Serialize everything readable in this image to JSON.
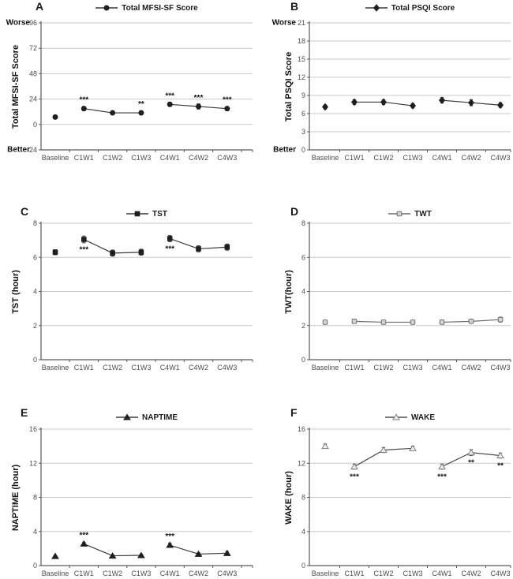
{
  "figure": {
    "background": "#ffffff",
    "style": {
      "grid_color": "#c9c9c9",
      "axis_color": "#595959",
      "tick_text_color": "#4d4d4d",
      "sig_color": "#111111"
    }
  },
  "chart_data": [
    {
      "type": "line",
      "letter": "A",
      "legend_label": "Total MFSI-SF Score",
      "y_axis_title": "Total MFSI-SF Score",
      "direction_labels": {
        "top": "Worse",
        "bottom": "Better"
      },
      "marker": "circle-filled",
      "marker_fill": "#1f1f1f",
      "marker_stroke": "#1f1f1f",
      "line_color": "#3a3a3a",
      "ylim": [
        -24,
        96
      ],
      "yticks": [
        96,
        72,
        48,
        24,
        0,
        -24
      ],
      "categories": [
        "Baseline",
        "C1W1",
        "C1W2",
        "C1W3",
        "C4W1",
        "C4W2",
        "C4W3"
      ],
      "values": [
        7,
        15,
        11,
        11,
        19,
        17,
        15
      ],
      "errors": [
        1.5,
        2,
        1.8,
        1.8,
        2,
        2.5,
        2
      ],
      "significance": [
        "",
        "***",
        "",
        "**",
        "***",
        "***",
        "***"
      ],
      "significance_position": "above",
      "connected_segments": [
        [
          1,
          2,
          3
        ],
        [
          4,
          5,
          6
        ]
      ]
    },
    {
      "type": "line",
      "letter": "B",
      "legend_label": "Total PSQI Score",
      "y_axis_title": "Total PSQI Score",
      "direction_labels": {
        "top": "Worse",
        "bottom": "Better"
      },
      "marker": "diamond-filled",
      "marker_fill": "#1f1f1f",
      "marker_stroke": "#1f1f1f",
      "line_color": "#3a3a3a",
      "ylim": [
        0,
        21
      ],
      "yticks": [
        21,
        18,
        15,
        12,
        9,
        6,
        3,
        0
      ],
      "categories": [
        "Baseline",
        "C1W1",
        "C1W2",
        "C1W3",
        "C4W1",
        "C4W2",
        "C4W3"
      ],
      "values": [
        7.1,
        7.9,
        7.9,
        7.3,
        8.2,
        7.8,
        7.4
      ],
      "errors": [
        0.35,
        0.4,
        0.4,
        0.35,
        0.45,
        0.5,
        0.4
      ],
      "significance": [
        "",
        "",
        "",
        "",
        "",
        "",
        ""
      ],
      "significance_position": "above",
      "connected_segments": [
        [
          1,
          2,
          3
        ],
        [
          4,
          5,
          6
        ]
      ]
    },
    {
      "type": "line",
      "letter": "C",
      "legend_label": "TST",
      "y_axis_title": "TST (hour)",
      "marker": "square-filled",
      "marker_fill": "#1f1f1f",
      "marker_stroke": "#1f1f1f",
      "line_color": "#3a3a3a",
      "ylim": [
        0,
        8
      ],
      "yticks": [
        8,
        6,
        4,
        2,
        0
      ],
      "categories": [
        "Baseline",
        "C1W1",
        "C1W2",
        "C1W3",
        "C4W1",
        "C4W2",
        "C4W3"
      ],
      "values": [
        6.3,
        7.05,
        6.25,
        6.3,
        7.1,
        6.5,
        6.6
      ],
      "errors": [
        0.15,
        0.2,
        0.18,
        0.18,
        0.18,
        0.18,
        0.18
      ],
      "significance": [
        "",
        "***",
        "",
        "",
        "***",
        "",
        ""
      ],
      "significance_position": "below",
      "connected_segments": [
        [
          1,
          2,
          3
        ],
        [
          4,
          5,
          6
        ]
      ]
    },
    {
      "type": "line",
      "letter": "D",
      "legend_label": "TWT",
      "y_axis_title": "TWT(hour)",
      "marker": "square-open",
      "marker_fill": "#d4d4d4",
      "marker_stroke": "#707070",
      "line_color": "#6b6b6b",
      "ylim": [
        0,
        8
      ],
      "yticks": [
        8,
        6,
        4,
        2,
        0
      ],
      "categories": [
        "Baseline",
        "C1W1",
        "C1W2",
        "C1W3",
        "C4W1",
        "C4W2",
        "C4W3"
      ],
      "values": [
        2.2,
        2.25,
        2.2,
        2.2,
        2.2,
        2.25,
        2.35
      ],
      "errors": [
        0.1,
        0.1,
        0.1,
        0.1,
        0.12,
        0.1,
        0.15
      ],
      "significance": [
        "",
        "",
        "",
        "",
        "",
        "",
        ""
      ],
      "significance_position": "above",
      "connected_segments": [
        [
          1,
          2,
          3
        ],
        [
          4,
          5,
          6
        ]
      ]
    },
    {
      "type": "line",
      "letter": "E",
      "legend_label": "NAPTIME",
      "y_axis_title": "NAPTIME (hour)",
      "marker": "triangle-filled",
      "marker_fill": "#1f1f1f",
      "marker_stroke": "#1f1f1f",
      "line_color": "#3a3a3a",
      "ylim": [
        0,
        16
      ],
      "yticks": [
        16,
        12,
        8,
        4,
        0
      ],
      "categories": [
        "Baseline",
        "C1W1",
        "C1W2",
        "C1W3",
        "C4W1",
        "C4W2",
        "C4W3"
      ],
      "values": [
        1.1,
        2.55,
        1.15,
        1.2,
        2.4,
        1.35,
        1.45
      ],
      "errors": [
        0.1,
        0.2,
        0.1,
        0.1,
        0.25,
        0.15,
        0.2
      ],
      "significance": [
        "",
        "***",
        "",
        "",
        "***",
        "",
        ""
      ],
      "significance_position": "above",
      "connected_segments": [
        [
          1,
          2,
          3
        ],
        [
          4,
          5,
          6
        ]
      ]
    },
    {
      "type": "line",
      "letter": "F",
      "legend_label": "WAKE",
      "y_axis_title": "WAKE (hour)",
      "marker": "triangle-open",
      "marker_fill": "#efefef",
      "marker_stroke": "#808080",
      "line_color": "#4d4d4d",
      "ylim": [
        0,
        16
      ],
      "yticks": [
        16,
        12,
        8,
        4,
        0
      ],
      "categories": [
        "Baseline",
        "C1W1",
        "C1W2",
        "C1W3",
        "C4W1",
        "C4W2",
        "C4W3"
      ],
      "values": [
        14.0,
        11.6,
        13.55,
        13.75,
        11.6,
        13.25,
        12.9
      ],
      "errors": [
        0.25,
        0.3,
        0.3,
        0.25,
        0.3,
        0.35,
        0.3
      ],
      "significance": [
        "",
        "***",
        "",
        "",
        "***",
        "**",
        "**"
      ],
      "significance_position": "below",
      "connected_segments": [
        [
          1,
          2,
          3
        ],
        [
          4,
          5,
          6
        ]
      ]
    }
  ]
}
